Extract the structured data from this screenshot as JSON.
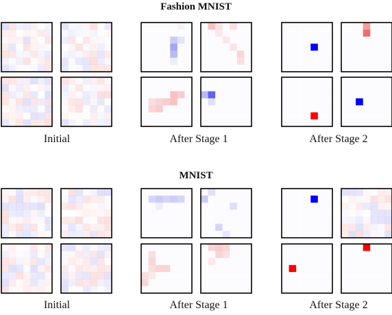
{
  "sections": [
    {
      "title": "Fashion MNIST",
      "groups": [
        {
          "label": "Initial"
        },
        {
          "label": "After Stage 1"
        },
        {
          "label": "After Stage 2"
        }
      ]
    },
    {
      "title": "MNIST",
      "groups": [
        {
          "label": "Initial"
        },
        {
          "label": "After Stage 1"
        },
        {
          "label": "After Stage 2"
        }
      ]
    }
  ]
}
